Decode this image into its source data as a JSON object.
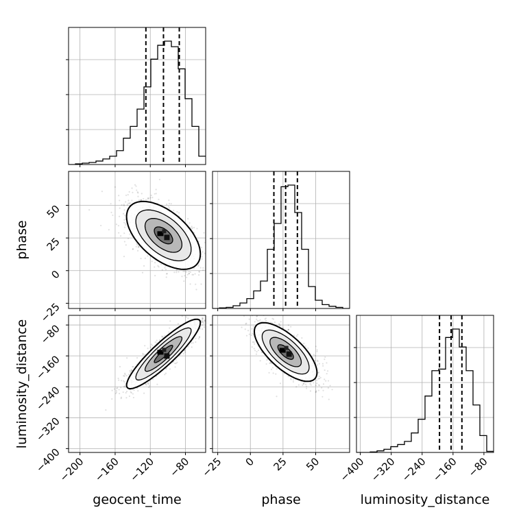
{
  "chart_data": {
    "type": "corner",
    "parameters": [
      "geocent_time",
      "phase",
      "luminosity_distance"
    ],
    "axis_labels": {
      "x": [
        "geocent_time",
        "phase",
        "luminosity_distance"
      ],
      "y": [
        "phase",
        "luminosity_distance"
      ]
    },
    "ranges": {
      "geocent_time": [
        -213,
        -57
      ],
      "phase": [
        -29,
        76
      ],
      "luminosity_distance": [
        -410,
        -55
      ]
    },
    "ticks": {
      "geocent_time": [
        -200,
        -160,
        -120,
        -80
      ],
      "phase": [
        -25,
        0,
        25,
        50
      ],
      "luminosity_distance": [
        -400,
        -320,
        -240,
        -160,
        -80
      ]
    },
    "tick_labels": {
      "geocent_time": [
        "−200",
        "−160",
        "−120",
        "−80"
      ],
      "phase": [
        "−25",
        "0",
        "25",
        "50"
      ],
      "luminosity_distance": [
        "−400",
        "−320",
        "−240",
        "−160",
        "−80"
      ]
    },
    "quantiles": {
      "geocent_time": [
        -125,
        -105,
        -87
      ],
      "phase": [
        18,
        27,
        36
      ],
      "luminosity_distance": [
        -195,
        -165,
        -137
      ]
    },
    "histograms": {
      "geocent_time": {
        "bin_edges": [
          -213,
          -205.2,
          -197.4,
          -189.6,
          -181.8,
          -174,
          -166.2,
          -158.4,
          -150.6,
          -142.8,
          -135,
          -127.2,
          -119.4,
          -111.6,
          -103.8,
          -96,
          -88.2,
          -80.4,
          -72.6,
          -64.8,
          -57
        ],
        "counts": [
          0,
          1,
          2,
          3,
          5,
          8,
          12,
          20,
          38,
          55,
          80,
          112,
          152,
          172,
          178,
          170,
          138,
          95,
          55,
          12
        ]
      },
      "phase": {
        "bin_edges": [
          -29,
          -23.75,
          -18.5,
          -13.25,
          -8,
          -2.75,
          2.5,
          7.75,
          13,
          18.25,
          23.5,
          28.75,
          34,
          39.25,
          44.5,
          49.75,
          55,
          60.25,
          65.5,
          70.75,
          76
        ],
        "counts": [
          0,
          1,
          2,
          5,
          10,
          18,
          32,
          50,
          108,
          155,
          222,
          225,
          175,
          108,
          40,
          15,
          7,
          4,
          2,
          0
        ]
      },
      "luminosity_distance": {
        "bin_edges": [
          -410,
          -392.25,
          -374.5,
          -356.75,
          -339,
          -321.25,
          -303.5,
          -285.75,
          -268,
          -250.25,
          -232.5,
          -214.75,
          -197,
          -179.25,
          -161.5,
          -143.75,
          -126,
          -108.25,
          -90.5,
          -72.75,
          -55
        ],
        "counts": [
          0,
          0,
          1,
          3,
          6,
          11,
          15,
          21,
          37,
          63,
          107,
          155,
          158,
          218,
          234,
          200,
          155,
          90,
          32,
          2
        ]
      }
    },
    "pairs": [
      {
        "x": "geocent_time",
        "y": "phase",
        "center": [
          -105,
          27
        ],
        "sd": [
          21,
          13
        ],
        "rho": -0.55,
        "contour_levels_sigma": [
          0.5,
          1.0,
          1.5,
          2.0
        ]
      },
      {
        "x": "geocent_time",
        "y": "luminosity_distance",
        "center": [
          -105,
          -155
        ],
        "sd": [
          21,
          45
        ],
        "rho": 0.9,
        "contour_levels_sigma": [
          0.5,
          1.0,
          1.5,
          2.0
        ]
      },
      {
        "x": "phase",
        "y": "luminosity_distance",
        "center": [
          27,
          -150
        ],
        "sd": [
          12,
          38
        ],
        "rho": -0.7,
        "contour_levels_sigma": [
          0.5,
          1.0,
          1.5,
          2.0
        ]
      }
    ],
    "grid": true
  }
}
